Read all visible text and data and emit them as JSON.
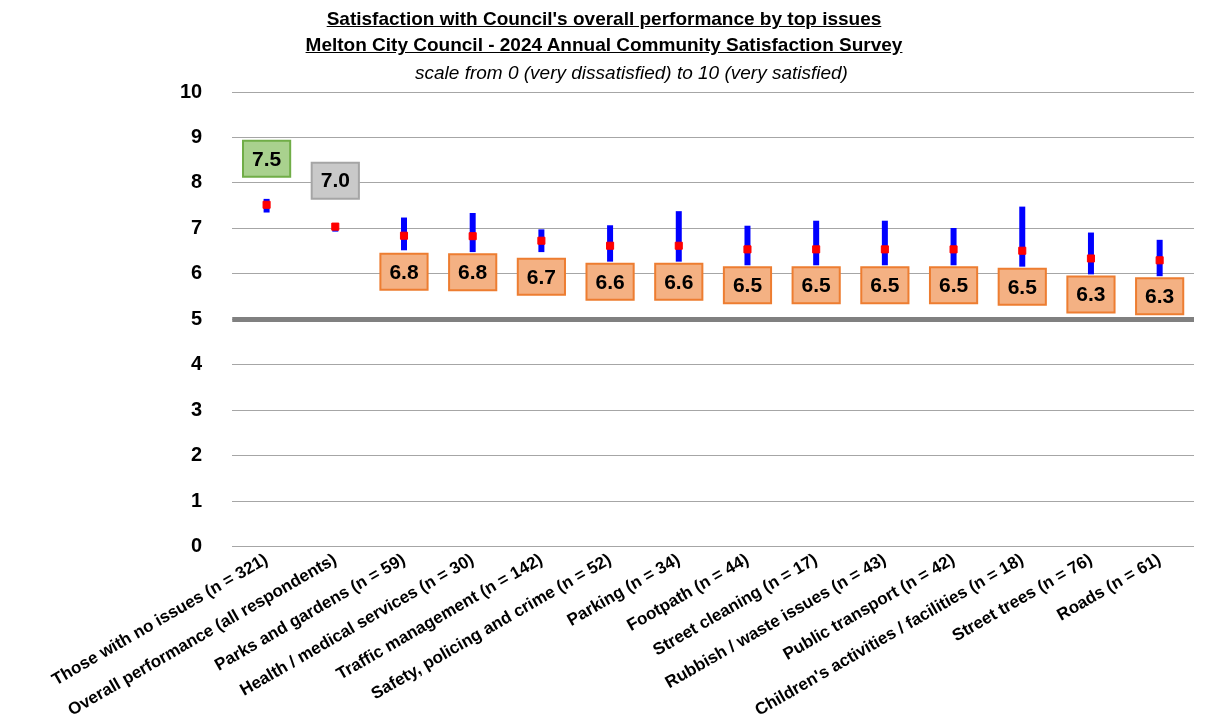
{
  "chart_data": {
    "type": "scatter",
    "title": "Satisfaction  with Council's overall performance by top issues\nMelton City Council - 2024 Annual Community Satisfaction Survey",
    "subtitle": "scale from 0 (very dissatisfied) to 10 (very satisfied)",
    "categories": [
      "Those with no issues (n = 321)",
      "Overall performance (all respondents)",
      "Parks and gardens (n = 59)",
      "Health / medical services (n = 30)",
      "Traffic management (n = 142)",
      "Safety, policing and crime (n = 52)",
      "Parking (n = 34)",
      "Footpath (n = 44)",
      "Street cleaning (n = 17)",
      "Rubbish / waste issues (n = 43)",
      "Public transport (n = 42)",
      "Children's activities / facilities (n = 18)",
      "Street trees (n = 76)",
      "Roads (n = 61)"
    ],
    "series": [
      {
        "color": "#ff0000",
        "values": [
          7.52,
          7.04,
          6.84,
          6.83,
          6.73,
          6.62,
          6.62,
          6.54,
          6.54,
          6.54,
          6.54,
          6.51,
          6.34,
          6.3
        ],
        "value_labels": [
          "7.5",
          "7.0",
          "6.8",
          "6.8",
          "6.7",
          "6.6",
          "6.6",
          "6.5",
          "6.5",
          "6.5",
          "6.5",
          "6.5",
          "6.3",
          "6.3"
        ],
        "errors": [
          [
            7.35,
            7.65
          ],
          [
            6.93,
            7.04
          ],
          [
            6.52,
            7.24
          ],
          [
            6.48,
            7.34
          ],
          [
            6.48,
            6.98
          ],
          [
            6.27,
            7.07
          ],
          [
            6.27,
            7.38
          ],
          [
            6.19,
            7.06
          ],
          [
            6.19,
            7.17
          ],
          [
            6.19,
            7.17
          ],
          [
            6.19,
            7.01
          ],
          [
            6.16,
            7.48
          ],
          [
            5.99,
            6.91
          ],
          [
            5.95,
            6.75
          ]
        ]
      }
    ],
    "ylim": [
      0,
      10
    ],
    "yticks": [
      0,
      1,
      2,
      3,
      4,
      5,
      6,
      7,
      8,
      9,
      10
    ],
    "grid": "y",
    "marker": "square",
    "ref_lines": [
      {
        "axis": "y",
        "value": 5,
        "color": "#808080"
      }
    ]
  }
}
